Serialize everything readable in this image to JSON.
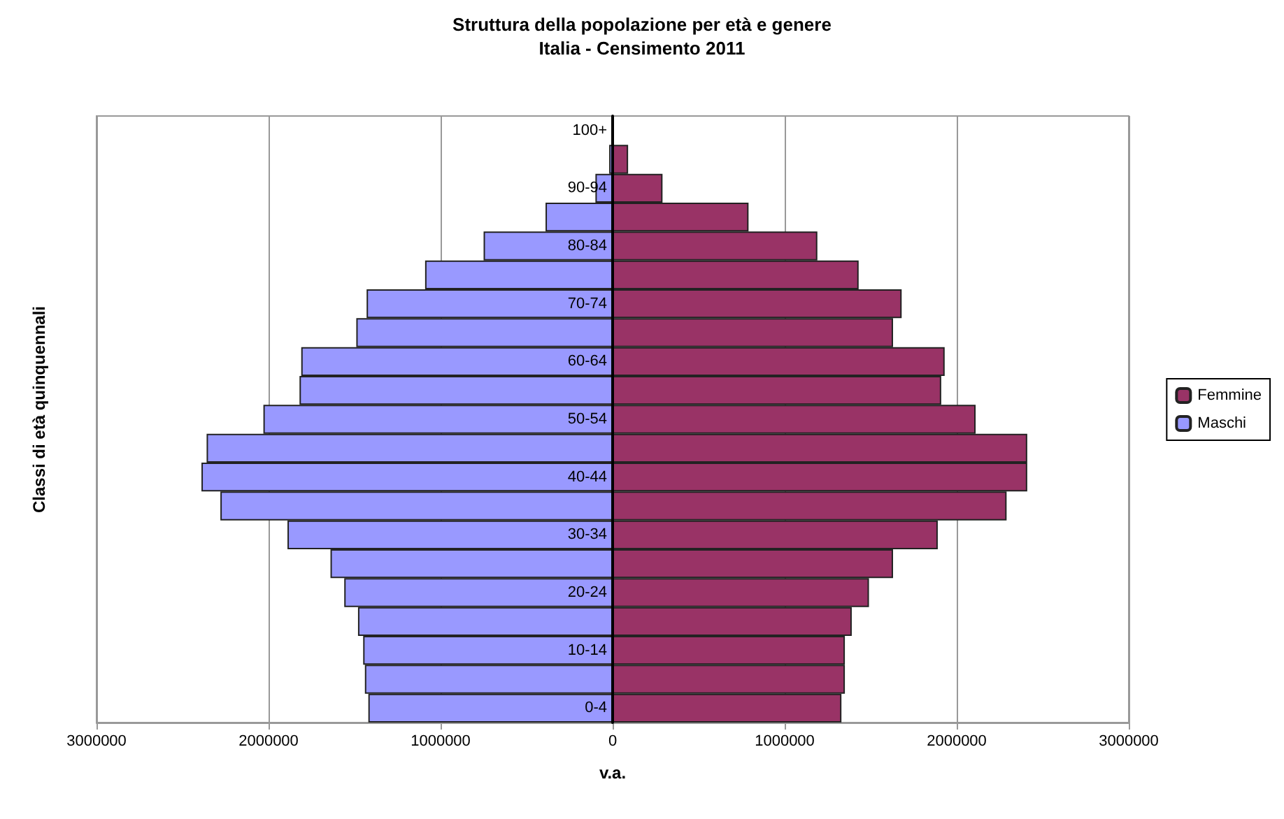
{
  "chart_data": {
    "type": "bar",
    "orientation": "horizontal",
    "title": "Struttura della popolazione per età e genere",
    "subtitle": "Italia - Censimento 2011",
    "xlabel": "v.a.",
    "ylabel": "Classi di età quinquennali",
    "categories": [
      "100+",
      null,
      "90-94",
      null,
      "80-84",
      null,
      "70-74",
      null,
      "60-64",
      null,
      "50-54",
      null,
      "40-44",
      null,
      "30-34",
      null,
      "20-24",
      null,
      "10-14",
      null,
      "0-4"
    ],
    "series": [
      {
        "name": "Femmine",
        "color": "#993366",
        "values": [
          null,
          90000,
          290000,
          790000,
          1190000,
          1430000,
          1680000,
          1630000,
          1930000,
          1910000,
          2110000,
          2410000,
          2410000,
          2290000,
          1890000,
          1630000,
          1490000,
          1390000,
          1350000,
          1350000,
          1330000
        ]
      },
      {
        "name": "Maschi",
        "color": "#9999ff",
        "values": [
          null,
          -20000,
          -100000,
          -390000,
          -750000,
          -1090000,
          -1430000,
          -1490000,
          -1810000,
          -1820000,
          -2030000,
          -2360000,
          -2390000,
          -2280000,
          -1890000,
          -1640000,
          -1560000,
          -1480000,
          -1450000,
          -1440000,
          -1420000
        ]
      }
    ],
    "xlim": [
      -3000000,
      3000000
    ],
    "xticks": [
      {
        "value": -3000000,
        "label": "3000000"
      },
      {
        "value": -2000000,
        "label": "2000000"
      },
      {
        "value": -1000000,
        "label": "1000000"
      },
      0,
      1000000,
      2000000,
      3000000
    ],
    "stacked": true,
    "grid": "x",
    "legend": "right"
  }
}
